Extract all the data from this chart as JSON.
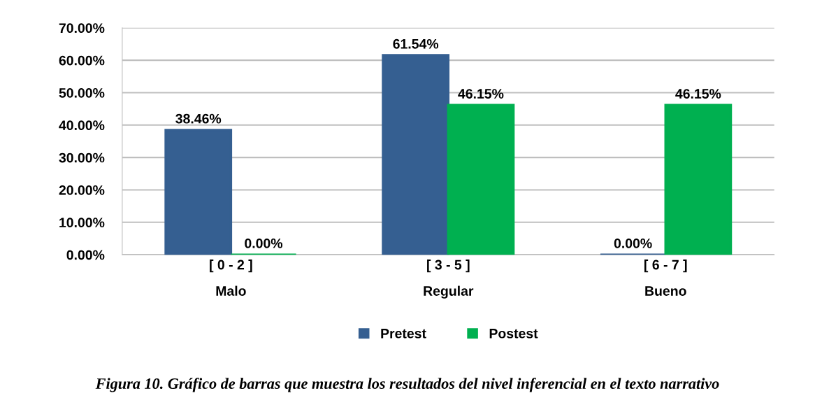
{
  "chart_data": {
    "type": "bar",
    "categories": [
      "Malo",
      "Regular",
      "Bueno"
    ],
    "series": [
      {
        "name": "Pretest",
        "color": "#355f91",
        "values": [
          38.46,
          61.54,
          0.0
        ],
        "value_labels": [
          "38.46%",
          "61.54%",
          "0.00%"
        ]
      },
      {
        "name": "Postest",
        "color": "#00b050",
        "values": [
          0.0,
          46.15,
          46.15
        ],
        "value_labels": [
          "0.00%",
          "46.15%",
          "46.15%"
        ]
      }
    ],
    "ylim": [
      0,
      70
    ],
    "yticks": [
      {
        "value": 0,
        "label": "0.00%"
      },
      {
        "value": 10,
        "label": "10.00%"
      },
      {
        "value": 20,
        "label": "20.00%"
      },
      {
        "value": 30,
        "label": "30.00%"
      },
      {
        "value": 40,
        "label": "40.00%"
      },
      {
        "value": 50,
        "label": "50.00%"
      },
      {
        "value": 60,
        "label": "60.00%"
      },
      {
        "value": 70,
        "label": "70.00%"
      }
    ],
    "grid": "y",
    "legend": "bottom",
    "annotations": [
      {
        "text": "[ 0 - 2 ]",
        "x": "Malo",
        "y": 0
      },
      {
        "text": "[ 3 - 5 ]",
        "x": "Regular",
        "y": 0
      },
      {
        "text": "[ 6 - 7 ]",
        "x": "Bueno",
        "y": 0
      },
      "Figura 10. Gráfico de barras que muestra los resultados del nivel inferencial en el texto narrativo"
    ]
  }
}
